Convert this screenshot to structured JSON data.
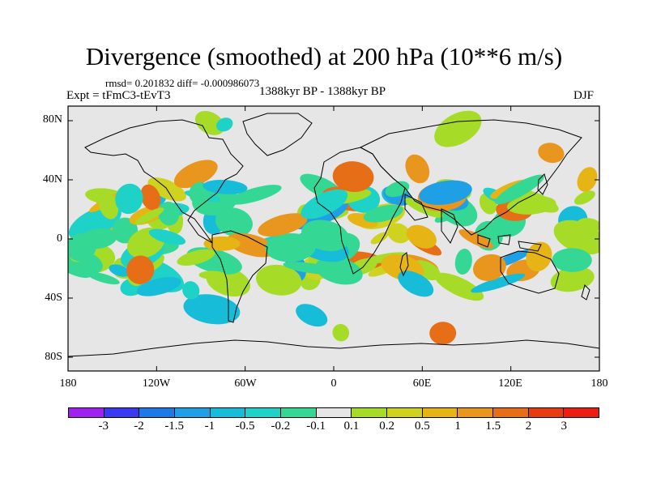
{
  "title": "Divergence (smoothed) at 200 hPa (10**6 m/s)",
  "stats": "rmsd= 0.201832 diff= -0.000986073",
  "experiment": "Expt = tFmC3-tEvT3",
  "period": "1388kyr BP - 1388kyr BP",
  "season": "DJF",
  "axes": {
    "y_labels": [
      "80N",
      "40N",
      "0",
      "40S",
      "80S"
    ],
    "x_labels": [
      "180",
      "120W",
      "60W",
      "0",
      "60E",
      "120E",
      "180"
    ]
  },
  "colorbar": {
    "labels": [
      "-3",
      "-2",
      "-1.5",
      "-1",
      "-0.5",
      "-0.2",
      "-0.1",
      "0.1",
      "0.2",
      "0.5",
      "1",
      "1.5",
      "2",
      "3"
    ],
    "colors": [
      "#a020f0",
      "#3a3af0",
      "#1e78e6",
      "#1fa0e6",
      "#16bcd8",
      "#1ed2c8",
      "#34d894",
      "#e6e6e6",
      "#a6dc28",
      "#cfd21e",
      "#e6b414",
      "#e8961e",
      "#e66e16",
      "#e63c14",
      "#ec1e14"
    ]
  },
  "field": {
    "pos": [
      "#a6dc28",
      "#cfd21e",
      "#e6b414",
      "#e8961e",
      "#e66e16"
    ],
    "neg": [
      "#34d894",
      "#1ed2c8",
      "#16bcd8",
      "#1fa0e6"
    ]
  }
}
